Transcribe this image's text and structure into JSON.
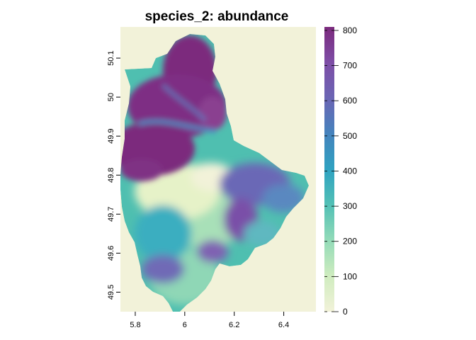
{
  "title": "species_2: abundance",
  "map": {
    "background_color": "#f2f2d9",
    "x_ticks": [
      "5.8",
      "6",
      "6.2",
      "6.4"
    ],
    "x_tick_values": [
      5.8,
      6.0,
      6.2,
      6.4
    ],
    "y_ticks": [
      "49.5",
      "49.6",
      "49.7",
      "49.8",
      "49.9",
      "50",
      "50.1"
    ],
    "y_tick_values": [
      49.5,
      49.6,
      49.7,
      49.8,
      49.9,
      50.0,
      50.1
    ],
    "xlim": [
      5.74,
      6.53
    ],
    "ylim": [
      49.45,
      50.18
    ]
  },
  "legend": {
    "labels": [
      "800",
      "700",
      "600",
      "500",
      "400",
      "300",
      "200",
      "100",
      "0"
    ],
    "values": [
      800,
      700,
      600,
      500,
      400,
      300,
      200,
      100,
      0
    ],
    "range": [
      0,
      810
    ],
    "colors": [
      "#f2f2d9",
      "#cfecbf",
      "#93dbb8",
      "#52c0b5",
      "#2fa2c1",
      "#4583bd",
      "#6b65b4",
      "#7e4ea6",
      "#7b2a7d"
    ]
  }
}
